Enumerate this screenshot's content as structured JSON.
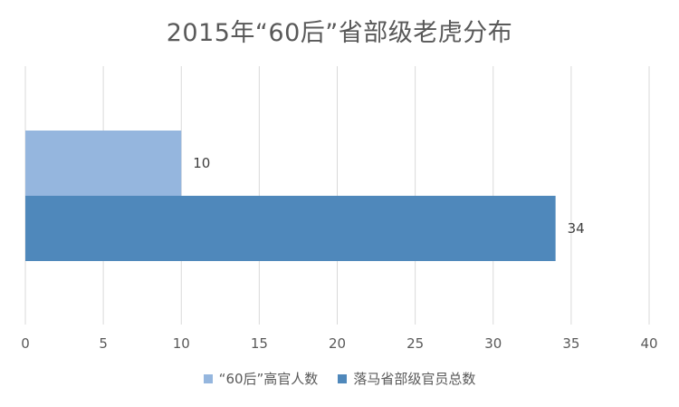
{
  "chart_data": {
    "type": "bar",
    "orientation": "horizontal",
    "title": "2015年“60后”省部级老虎分布",
    "xlim": [
      0,
      40
    ],
    "x_ticks": [
      "0",
      "5",
      "10",
      "15",
      "20",
      "25",
      "30",
      "35",
      "40"
    ],
    "grid": true,
    "legend_position": "bottom",
    "series": [
      {
        "name": "“60后”高官人数",
        "values": [
          10
        ],
        "color": "#95b6de",
        "label": "10"
      },
      {
        "name": "落马省部级官员总数",
        "values": [
          34
        ],
        "color": "#4f88bb",
        "label": "34"
      }
    ]
  }
}
